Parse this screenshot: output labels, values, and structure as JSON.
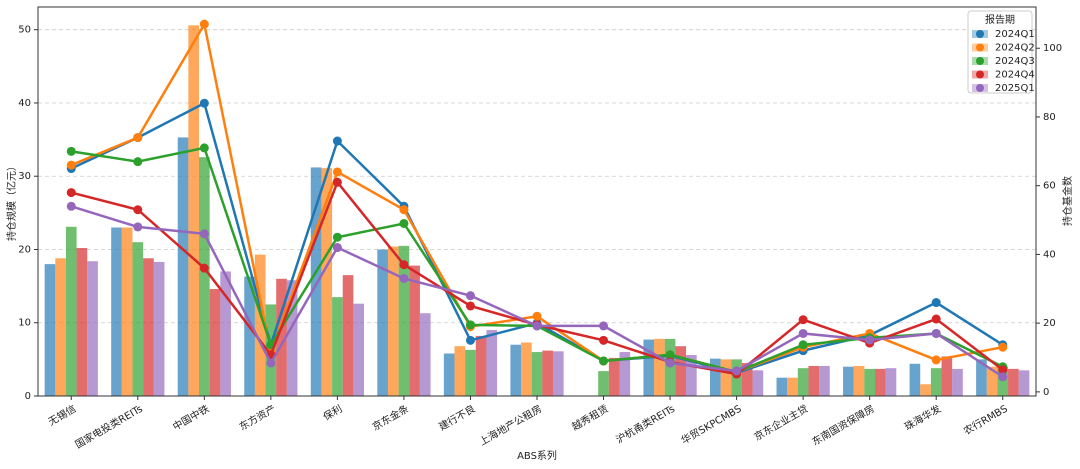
{
  "chart_data": {
    "type": "bar-line",
    "xlabel": "ABS系列",
    "ylabel": "持仓规模（亿元）",
    "y2label": "持仓基金数",
    "legend_title": "报告期",
    "legend": "upper right",
    "grid": true,
    "categories": [
      "无锡信",
      "国家电投类REITs",
      "中国中铁",
      "东方资产",
      "保利",
      "京东金条",
      "建行不良",
      "上海地产公租房",
      "越秀租赁",
      "沪杭甬类REITs",
      "华贸SKPCMBS",
      "京东企业主贷",
      "东南国资保障房",
      "珠海华发",
      "农行RMBS"
    ],
    "ylim": [
      0,
      53.1
    ],
    "yticks": [
      0,
      10,
      20,
      30,
      40,
      50
    ],
    "y2lim": [
      -1.2,
      112
    ],
    "y2ticks": [
      0,
      20,
      40,
      60,
      80,
      100
    ],
    "series": [
      {
        "name": "2024Q1",
        "color": "#1f77b4",
        "values": [
          18,
          23,
          35.3,
          16.3,
          31.2,
          20,
          5.8,
          7,
          0,
          7.7,
          5.1,
          2.5,
          4,
          4.4,
          5
        ],
        "counts": [
          65,
          74,
          84,
          13.7,
          73,
          54,
          15,
          20,
          9,
          10.5,
          5.5,
          12,
          16.5,
          26,
          13.7
        ]
      },
      {
        "name": "2024Q2",
        "color": "#ff7f0e",
        "values": [
          18.8,
          23,
          50.6,
          19.3,
          31.1,
          20.4,
          6.8,
          7.3,
          0,
          7.8,
          5,
          2.5,
          4.1,
          1.6,
          4
        ],
        "counts": [
          66,
          74,
          107,
          11.6,
          64,
          53,
          19,
          22,
          9,
          10.8,
          5.8,
          13,
          17,
          9.3,
          13
        ]
      },
      {
        "name": "2024Q3",
        "color": "#2ca02c",
        "values": [
          23.1,
          21,
          32.6,
          12.5,
          13.5,
          20.5,
          6.3,
          6,
          3.4,
          7.8,
          5,
          3.8,
          3.7,
          3.8,
          4
        ],
        "counts": [
          70,
          67,
          71,
          13.7,
          45,
          49,
          19.5,
          19.2,
          9,
          10.8,
          5.8,
          13.7,
          15.7,
          17,
          7.3
        ]
      },
      {
        "name": "2024Q4",
        "color": "#d62728",
        "values": [
          20.2,
          18.8,
          14.6,
          16,
          16.5,
          17.8,
          8.2,
          6.2,
          5.2,
          6.8,
          4.5,
          4.1,
          3.7,
          5.4,
          3.7
        ],
        "counts": [
          58,
          53,
          36,
          10.8,
          61,
          37,
          25,
          19.5,
          15,
          8.7,
          5.2,
          21,
          14.2,
          21.2,
          6.4
        ]
      },
      {
        "name": "2025Q1",
        "color": "#9467bd",
        "values": [
          18.4,
          18.3,
          17,
          15.8,
          12.6,
          11.3,
          9,
          6.1,
          6,
          5.6,
          3.5,
          4.1,
          3.8,
          3.7,
          3.5
        ],
        "counts": [
          54,
          48,
          46,
          8.4,
          42,
          33,
          28,
          19.2,
          19.2,
          8.4,
          6.1,
          17,
          15.1,
          17,
          4.4
        ]
      }
    ]
  }
}
